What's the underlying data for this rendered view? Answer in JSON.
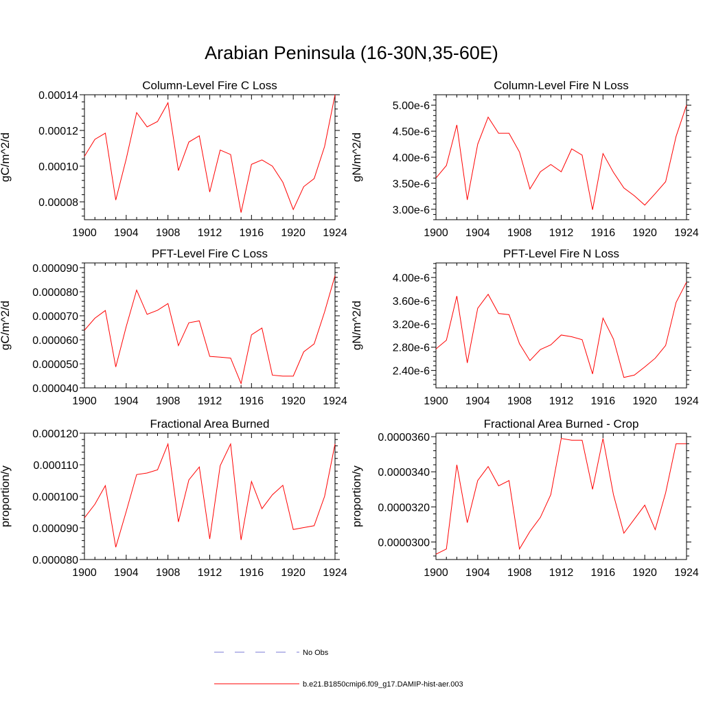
{
  "figure": {
    "title": "Arabian Peninsula (16-30N,35-60E)"
  },
  "colors": {
    "model_line": "#ff0000",
    "obs_line": "#7a7ad6",
    "axis": "#000000"
  },
  "legend": {
    "entries": [
      {
        "label": "No Obs",
        "style": "dashed",
        "color": "#7a7ad6"
      },
      {
        "label": "b.e21.B1850cmip6.f09_g17.DAMIP-hist-aer.003",
        "style": "solid",
        "color": "#ff0000"
      }
    ]
  },
  "chart_data": [
    {
      "type": "line",
      "title": "Column-Level Fire C Loss",
      "ylabel": "gC/m^2/d",
      "xlim": [
        1900,
        1924
      ],
      "ylim": [
        7e-05,
        0.00014
      ],
      "xticks": [
        1900,
        1904,
        1908,
        1912,
        1916,
        1920,
        1924
      ],
      "xtick_labels": [
        "1900",
        "1904",
        "1908",
        "1912",
        "1916",
        "1920",
        "1924"
      ],
      "yticks": [
        8e-05,
        0.0001,
        0.00012,
        0.00014
      ],
      "ytick_labels": [
        "0.00008",
        "0.00010",
        "0.00012",
        "0.00014"
      ],
      "x": [
        1900,
        1901,
        1902,
        1903,
        1904,
        1905,
        1906,
        1907,
        1908,
        1909,
        1910,
        1911,
        1912,
        1913,
        1914,
        1915,
        1916,
        1917,
        1918,
        1919,
        1920,
        1921,
        1922,
        1923,
        1924
      ],
      "series": [
        {
          "values": [
            0.0001055,
            0.000115,
            0.0001185,
            8.1e-05,
            0.000104,
            0.00013,
            0.000122,
            0.000125,
            0.0001355,
            9.75e-05,
            0.0001135,
            0.000117,
            8.55e-05,
            0.000109,
            0.0001065,
            7.4e-05,
            0.000101,
            0.0001035,
            0.0001,
            9.1e-05,
            7.57e-05,
            8.85e-05,
            9.3e-05,
            0.000111,
            0.00014
          ]
        }
      ]
    },
    {
      "type": "line",
      "title": "Column-Level Fire N Loss",
      "ylabel": "gN/m^2/d",
      "xlim": [
        1900,
        1924
      ],
      "ylim": [
        2.8e-06,
        5.2e-06
      ],
      "xticks": [
        1900,
        1904,
        1908,
        1912,
        1916,
        1920,
        1924
      ],
      "xtick_labels": [
        "1900",
        "1904",
        "1908",
        "1912",
        "1916",
        "1920",
        "1924"
      ],
      "yticks": [
        3e-06,
        3.5e-06,
        4e-06,
        4.5e-06,
        5e-06
      ],
      "ytick_labels": [
        "3.00e-6",
        "3.50e-6",
        "4.00e-6",
        "4.50e-6",
        "5.00e-6"
      ],
      "x": [
        1900,
        1901,
        1902,
        1903,
        1904,
        1905,
        1906,
        1907,
        1908,
        1909,
        1910,
        1911,
        1912,
        1913,
        1914,
        1915,
        1916,
        1917,
        1918,
        1919,
        1920,
        1921,
        1922,
        1923,
        1924
      ],
      "series": [
        {
          "values": [
            3.6e-06,
            3.84e-06,
            4.62e-06,
            3.18e-06,
            4.25e-06,
            4.77e-06,
            4.46e-06,
            4.46e-06,
            4.1e-06,
            3.39e-06,
            3.72e-06,
            3.86e-06,
            3.72e-06,
            4.16e-06,
            4.04e-06,
            2.99e-06,
            4.07e-06,
            3.71e-06,
            3.41e-06,
            3.26e-06,
            3.08e-06,
            3.3e-06,
            3.53e-06,
            4.4e-06,
            5e-06
          ]
        }
      ]
    },
    {
      "type": "line",
      "title": "PFT-Level Fire C Loss",
      "ylabel": "gC/m^2/d",
      "xlim": [
        1900,
        1924
      ],
      "ylim": [
        4e-05,
        9.2e-05
      ],
      "xticks": [
        1900,
        1904,
        1908,
        1912,
        1916,
        1920,
        1924
      ],
      "xtick_labels": [
        "1900",
        "1904",
        "1908",
        "1912",
        "1916",
        "1920",
        "1924"
      ],
      "yticks": [
        4e-05,
        5e-05,
        6e-05,
        7e-05,
        8e-05,
        9e-05
      ],
      "ytick_labels": [
        "0.000040",
        "0.000050",
        "0.000060",
        "0.000070",
        "0.000080",
        "0.000090"
      ],
      "x": [
        1900,
        1901,
        1902,
        1903,
        1904,
        1905,
        1906,
        1907,
        1908,
        1909,
        1910,
        1911,
        1912,
        1913,
        1914,
        1915,
        1916,
        1917,
        1918,
        1919,
        1920,
        1921,
        1922,
        1923,
        1924
      ],
      "series": [
        {
          "values": [
            6.4e-05,
            6.9e-05,
            7.22e-05,
            4.87e-05,
            6.55e-05,
            8.07e-05,
            7.06e-05,
            7.23e-05,
            7.51e-05,
            5.76e-05,
            6.71e-05,
            6.79e-05,
            5.31e-05,
            5.28e-05,
            5.24e-05,
            4.18e-05,
            6.21e-05,
            6.49e-05,
            4.53e-05,
            4.49e-05,
            4.49e-05,
            5.5e-05,
            5.83e-05,
            7.16e-05,
            8.67e-05
          ]
        }
      ]
    },
    {
      "type": "line",
      "title": "PFT-Level Fire N Loss",
      "ylabel": "gN/m^2/d",
      "xlim": [
        1900,
        1924
      ],
      "ylim": [
        2.1e-06,
        4.25e-06
      ],
      "xticks": [
        1900,
        1904,
        1908,
        1912,
        1916,
        1920,
        1924
      ],
      "xtick_labels": [
        "1900",
        "1904",
        "1908",
        "1912",
        "1916",
        "1920",
        "1924"
      ],
      "yticks": [
        2.4e-06,
        2.8e-06,
        3.2e-06,
        3.6e-06,
        4e-06
      ],
      "ytick_labels": [
        "2.40e-6",
        "2.80e-6",
        "3.20e-6",
        "3.60e-6",
        "4.00e-6"
      ],
      "x": [
        1900,
        1901,
        1902,
        1903,
        1904,
        1905,
        1906,
        1907,
        1908,
        1909,
        1910,
        1911,
        1912,
        1913,
        1914,
        1915,
        1916,
        1917,
        1918,
        1919,
        1920,
        1921,
        1922,
        1923,
        1924
      ],
      "series": [
        {
          "values": [
            2.77e-06,
            2.92e-06,
            3.68e-06,
            2.53e-06,
            3.47e-06,
            3.71e-06,
            3.38e-06,
            3.36e-06,
            2.86e-06,
            2.57e-06,
            2.76e-06,
            2.84e-06,
            3.01e-06,
            2.98e-06,
            2.93e-06,
            2.34e-06,
            3.3e-06,
            2.94e-06,
            2.28e-06,
            2.32e-06,
            2.46e-06,
            2.61e-06,
            2.83e-06,
            3.57e-06,
            3.92e-06
          ]
        }
      ]
    },
    {
      "type": "line",
      "title": "Fractional Area Burned",
      "ylabel": "proportion/y",
      "xlim": [
        1900,
        1924
      ],
      "ylim": [
        8e-05,
        0.00012
      ],
      "xticks": [
        1900,
        1904,
        1908,
        1912,
        1916,
        1920,
        1924
      ],
      "xtick_labels": [
        "1900",
        "1904",
        "1908",
        "1912",
        "1916",
        "1920",
        "1924"
      ],
      "yticks": [
        8e-05,
        9e-05,
        0.0001,
        0.00011,
        0.00012
      ],
      "ytick_labels": [
        "0.000080",
        "0.000090",
        "0.000100",
        "0.000110",
        "0.000120"
      ],
      "x": [
        1900,
        1901,
        1902,
        1903,
        1904,
        1905,
        1906,
        1907,
        1908,
        1909,
        1910,
        1911,
        1912,
        1913,
        1914,
        1915,
        1916,
        1917,
        1918,
        1919,
        1920,
        1921,
        1922,
        1923,
        1924
      ],
      "series": [
        {
          "values": [
            9.32e-05,
            9.75e-05,
            0.0001034,
            8.39e-05,
            9.52e-05,
            0.0001069,
            0.0001074,
            0.0001084,
            0.0001166,
            9.19e-05,
            0.0001052,
            0.0001093,
            8.65e-05,
            0.0001097,
            0.0001166,
            8.62e-05,
            0.0001047,
            9.61e-05,
            0.0001005,
            0.0001035,
            8.95e-05,
            9.01e-05,
            9.07e-05,
            0.0001,
            0.0001166
          ]
        }
      ]
    },
    {
      "type": "line",
      "title": "Fractional Area Burned - Crop",
      "ylabel": "proportion/y",
      "xlim": [
        1900,
        1924
      ],
      "ylim": [
        2.9e-05,
        3.62e-05
      ],
      "xticks": [
        1900,
        1904,
        1908,
        1912,
        1916,
        1920,
        1924
      ],
      "xtick_labels": [
        "1900",
        "1904",
        "1908",
        "1912",
        "1916",
        "1920",
        "1924"
      ],
      "yticks": [
        3e-05,
        3.2e-05,
        3.4e-05,
        3.6e-05
      ],
      "ytick_labels": [
        "0.0000300",
        "0.0000320",
        "0.0000340",
        "0.0000360"
      ],
      "x": [
        1900,
        1901,
        1902,
        1903,
        1904,
        1905,
        1906,
        1907,
        1908,
        1909,
        1910,
        1911,
        1912,
        1913,
        1914,
        1915,
        1916,
        1917,
        1918,
        1919,
        1920,
        1921,
        1922,
        1923,
        1924
      ],
      "series": [
        {
          "values": [
            2.93e-05,
            2.96e-05,
            3.44e-05,
            3.11e-05,
            3.35e-05,
            3.43e-05,
            3.32e-05,
            3.35e-05,
            2.96e-05,
            3.06e-05,
            3.14e-05,
            3.27e-05,
            3.59e-05,
            3.58e-05,
            3.58e-05,
            3.3e-05,
            3.59e-05,
            3.27e-05,
            3.05e-05,
            3.13e-05,
            3.21e-05,
            3.07e-05,
            3.28e-05,
            3.56e-05,
            3.56e-05
          ]
        }
      ]
    }
  ]
}
